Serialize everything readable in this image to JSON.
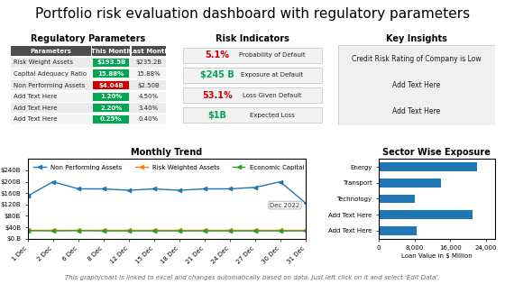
{
  "title": "Portfolio risk evaluation dashboard with regulatory parameters",
  "annotations": [
    "This graph/chart is linked to excel and changes automatically based on data. Just left click on it and select 'Edit Data'."
  ],
  "chart_data": [
    {
      "type": "table",
      "title": "Regulatory Parameters",
      "columns": [
        "Parameters",
        "This Month",
        "Last Month"
      ],
      "rows": [
        [
          "Risk Weight Assets",
          "$193.5B",
          "$235.2B"
        ],
        [
          "Capital Adequacy Ratio",
          "15.88%",
          "15.88%"
        ],
        [
          "Non Performing Assets",
          "$4.04B",
          "$2.50B"
        ],
        [
          "Add Text Here",
          "1.20%",
          "4.50%"
        ],
        [
          "Add Text Here",
          "2.20%",
          "3.40%"
        ],
        [
          "Add Text Here",
          "0.25%",
          "0.40%"
        ]
      ],
      "colors": [
        "#00a651",
        "#00a651",
        "#cc0000",
        "#00a651",
        "#00a651",
        "#00a651"
      ]
    },
    {
      "type": "text",
      "title": "Risk Indicators",
      "categories": [
        "Probability of Default",
        "Exposure at Default",
        "Loss Given Default",
        "Expected Loss"
      ],
      "value_labels": [
        "5.1%",
        "$245 B",
        "53.1%",
        "$1B"
      ],
      "colors": [
        "#cc0000",
        "#00a651",
        "#cc0000",
        "#00a651"
      ]
    },
    {
      "type": "text",
      "title": "Key Insights",
      "annotations": [
        "Credit Risk Rating of Company is Low",
        "Add Text Here",
        "Add Text Here"
      ]
    },
    {
      "type": "line",
      "title": "Monthly Trend",
      "categories": [
        "1 Dec",
        "2 Dec",
        "6 Dec",
        "8 Dec",
        "12 Dec",
        "15 Dec",
        "18 Dec",
        "21 Dec",
        "24 Dec",
        "27 Dec",
        "30 Dec",
        "31 Dec"
      ],
      "series": [
        {
          "name": "Non Performing Assets",
          "values": [
            150,
            200,
            175,
            175,
            170,
            175,
            170,
            175,
            175,
            180,
            200,
            125
          ]
        },
        {
          "name": "Risk Weighted Assets",
          "values": [
            30,
            30,
            30,
            30,
            30,
            30,
            30,
            30,
            30,
            30,
            30,
            30
          ]
        },
        {
          "name": "Economic Capital",
          "values": [
            28,
            27,
            28,
            27,
            27,
            27,
            27,
            27,
            27,
            27,
            27,
            27
          ]
        }
      ],
      "marker": "triangle_left",
      "ylim": [
        0,
        280
      ],
      "yticks": [
        {
          "value": 0,
          "label": "$0.B"
        },
        {
          "value": 40,
          "label": "$40B"
        },
        {
          "value": 80,
          "label": "$80B"
        },
        {
          "value": 120,
          "label": "$120B"
        },
        {
          "value": 160,
          "label": "$160B"
        },
        {
          "value": 200,
          "label": "$200B"
        },
        {
          "value": 240,
          "label": "$240B"
        }
      ],
      "annotations": [
        "Dec 2022"
      ],
      "legend": "upper left"
    },
    {
      "type": "bar",
      "orientation": "horizontal",
      "title": "Sector Wise Exposure",
      "categories": [
        "Energy",
        "Transport",
        "Technology",
        "Add Text Here",
        "Add Text Here"
      ],
      "values": [
        22000,
        14000,
        8000,
        21000,
        8500
      ],
      "xlabel": "Loan Value in $ Million",
      "xlim": [
        0,
        26000
      ],
      "xticks": [
        0,
        {
          "value": 8000,
          "label": "8,000"
        },
        {
          "value": 16000,
          "label": "16,000"
        },
        {
          "value": 24000,
          "label": "24,000"
        }
      ]
    }
  ]
}
